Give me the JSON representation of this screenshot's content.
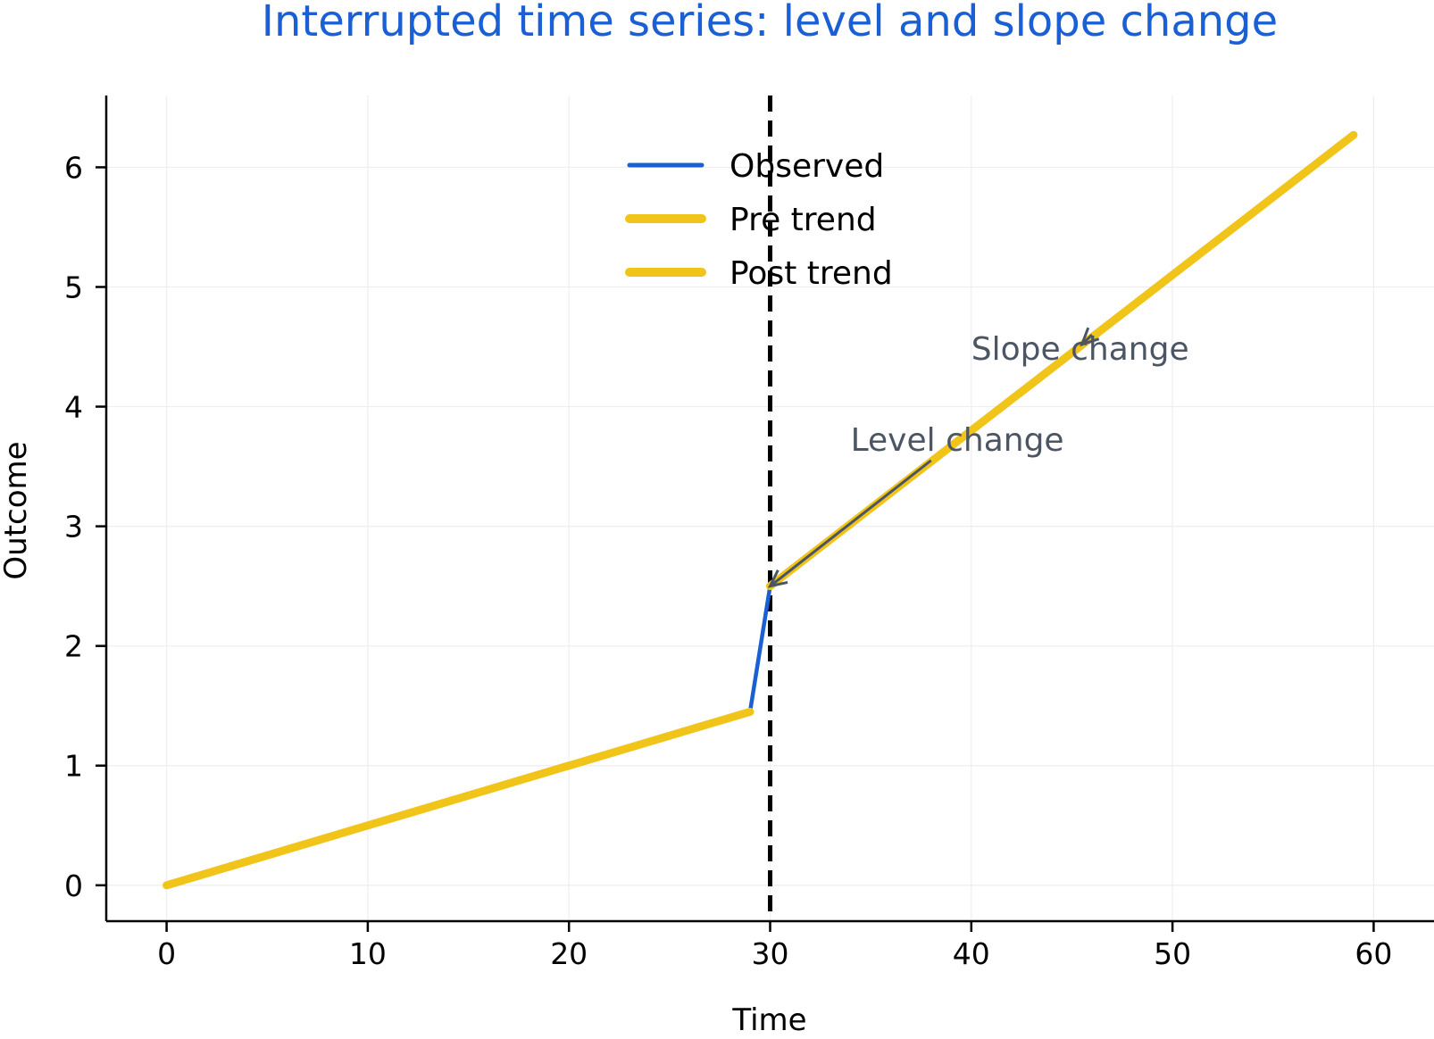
{
  "chart_data": {
    "type": "line",
    "title": "Interrupted time series: level and slope change",
    "xlabel": "Time",
    "ylabel": "Outcome",
    "xlim": [
      -3,
      63
    ],
    "ylim": [
      -0.3,
      6.6
    ],
    "xticks": [
      0,
      10,
      20,
      30,
      40,
      50,
      60
    ],
    "yticks": [
      0,
      1,
      2,
      3,
      4,
      5,
      6
    ],
    "grid": true,
    "legend_position": "top-center",
    "intervention_x": 30,
    "series": [
      {
        "name": "Observed",
        "color": "#1a5fd4",
        "x": [
          0,
          29,
          30,
          59
        ],
        "y": [
          0.0,
          1.45,
          2.5,
          6.27
        ]
      },
      {
        "name": "Pre trend",
        "color": "#f0c419",
        "x": [
          0,
          29
        ],
        "y": [
          0.0,
          1.45
        ]
      },
      {
        "name": "Post trend",
        "color": "#f0c419",
        "x": [
          30,
          59
        ],
        "y": [
          2.5,
          6.27
        ]
      }
    ],
    "annotations": [
      {
        "text": "Level change",
        "text_x": 34,
        "text_y": 3.72,
        "arrow_from": [
          38,
          3.55
        ],
        "arrow_to": [
          30,
          2.5
        ]
      },
      {
        "text": "Slope change",
        "text_x": 40,
        "text_y": 4.48,
        "arrow_from": [
          46,
          4.6
        ],
        "arrow_to": [
          45.5,
          4.52
        ]
      }
    ]
  }
}
